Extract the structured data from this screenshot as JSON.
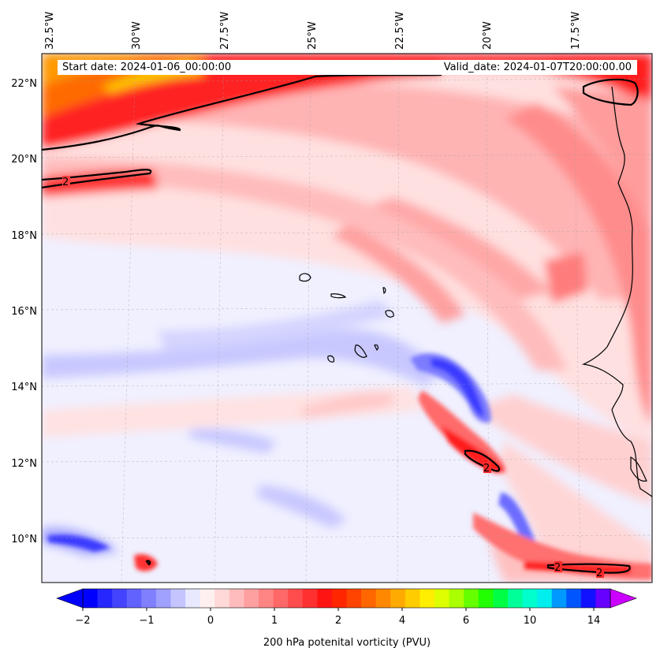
{
  "header": {
    "start_label": "Start date: 2024-01-06_00:00:00",
    "valid_label": "Valid_date: 2024-01-07T20:00:00.00"
  },
  "axes": {
    "lon_labels": [
      "32.5°W",
      "30°W",
      "27.5°W",
      "25°W",
      "22.5°W",
      "20°W",
      "17.5°W"
    ],
    "lat_labels": [
      "22°N",
      "20°N",
      "18°N",
      "16°N",
      "14°N",
      "12°N",
      "10°N"
    ]
  },
  "contour_label": "2",
  "colorbar": {
    "title": "200 hPa potenital vorticity (PVU)",
    "tick_labels": [
      "−2",
      "−1",
      "0",
      "1",
      "2",
      "4",
      "6",
      "10",
      "14"
    ],
    "levels": 36,
    "colors": [
      "#0000ff",
      "#2626ff",
      "#4444ff",
      "#6262ff",
      "#8080ff",
      "#a0a0ff",
      "#c4c4ff",
      "#e8e8ff",
      "#fff0f0",
      "#ffd8d8",
      "#ffbcbc",
      "#ffa0a0",
      "#ff8484",
      "#ff6868",
      "#ff4c4c",
      "#ff3030",
      "#ff1414",
      "#ff2600",
      "#ff4400",
      "#ff6600",
      "#ff8800",
      "#ffaa00",
      "#ffcc00",
      "#ffee00",
      "#ddff00",
      "#aaff00",
      "#66ff00",
      "#22ff00",
      "#00ff44",
      "#00ff99",
      "#00ffcc",
      "#00eeee",
      "#0099ff",
      "#0055ff",
      "#1111ff",
      "#6600ff"
    ]
  },
  "palette": {
    "background": "#f0f0ff",
    "pv_neg_light": "#c8c8ff",
    "pv_neg_mid": "#7b7bff",
    "pv_neg_strong": "#3a3aff",
    "pv_low": "#ffe4e4",
    "pv_mid": "#ffbcbc",
    "pv_high": "#ff7c7c",
    "pv_very_high": "#ff2a2a",
    "pv_orange": "#ff6a00",
    "pv_yellow": "#ffcc00",
    "coast": "#000000"
  }
}
